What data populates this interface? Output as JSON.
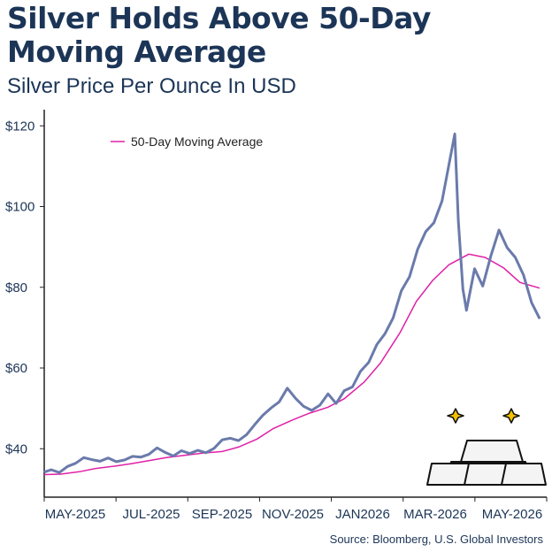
{
  "title": "Silver Holds Above 50-Day Moving Average",
  "subtitle": "Silver Price Per Ounce In USD",
  "source": "Source: Bloomberg, U.S. Global Investors",
  "chart_data": {
    "type": "line",
    "title": "Silver Holds Above 50-Day Moving Average",
    "subtitle": "Silver Price Per Ounce In USD",
    "xlabel": "",
    "ylabel": "",
    "x_tick_labels": [
      "MAY-2025",
      "JUL-2025",
      "SEP-2025",
      "NOV-2025",
      "JAN2026",
      "MAR-2026",
      "MAY-2026"
    ],
    "y_tick_labels": [
      "$40",
      "$60",
      "$80",
      "$100",
      "$120"
    ],
    "y_ticks": [
      40,
      60,
      80,
      100,
      120
    ],
    "xlim": [
      "2025-04-01",
      "2026-06-07"
    ],
    "ylim": [
      28,
      124
    ],
    "grid": false,
    "legend_position": "top-left",
    "colors": {
      "price": "#6a7aab",
      "ma": "#e020a8",
      "text": "#1c3557"
    },
    "series": [
      {
        "key": "price",
        "name": "",
        "points": [
          [
            "2025-04-01",
            34.2
          ],
          [
            "2025-04-07",
            34.8
          ],
          [
            "2025-04-14",
            34.1
          ],
          [
            "2025-04-21",
            35.6
          ],
          [
            "2025-04-28",
            36.4
          ],
          [
            "2025-05-05",
            37.8
          ],
          [
            "2025-05-12",
            37.3
          ],
          [
            "2025-05-19",
            36.9
          ],
          [
            "2025-05-26",
            37.7
          ],
          [
            "2025-06-02",
            36.8
          ],
          [
            "2025-06-09",
            37.2
          ],
          [
            "2025-06-16",
            38.1
          ],
          [
            "2025-06-23",
            37.9
          ],
          [
            "2025-06-30",
            38.6
          ],
          [
            "2025-07-07",
            40.2
          ],
          [
            "2025-07-14",
            39.1
          ],
          [
            "2025-07-21",
            38.2
          ],
          [
            "2025-07-28",
            39.5
          ],
          [
            "2025-08-04",
            38.8
          ],
          [
            "2025-08-11",
            39.6
          ],
          [
            "2025-08-18",
            39.0
          ],
          [
            "2025-08-25",
            40.1
          ],
          [
            "2025-09-01",
            42.2
          ],
          [
            "2025-09-08",
            42.6
          ],
          [
            "2025-09-15",
            42.0
          ],
          [
            "2025-09-22",
            43.5
          ],
          [
            "2025-09-29",
            46.0
          ],
          [
            "2025-10-06",
            48.3
          ],
          [
            "2025-10-13",
            50.1
          ],
          [
            "2025-10-20",
            51.6
          ],
          [
            "2025-10-27",
            55.0
          ],
          [
            "2025-11-03",
            52.5
          ],
          [
            "2025-11-10",
            50.5
          ],
          [
            "2025-11-17",
            49.5
          ],
          [
            "2025-11-24",
            50.8
          ],
          [
            "2025-12-01",
            53.6
          ],
          [
            "2025-12-08",
            51.2
          ],
          [
            "2025-12-15",
            54.4
          ],
          [
            "2025-12-22",
            55.3
          ],
          [
            "2025-12-29",
            59.2
          ],
          [
            "2026-01-05",
            61.4
          ],
          [
            "2026-01-12",
            65.8
          ],
          [
            "2026-01-19",
            68.5
          ],
          [
            "2026-01-26",
            72.4
          ],
          [
            "2026-02-02",
            79.1
          ],
          [
            "2026-02-09",
            82.6
          ],
          [
            "2026-02-16",
            89.4
          ],
          [
            "2026-02-23",
            93.8
          ],
          [
            "2026-03-02",
            96.0
          ],
          [
            "2026-03-09",
            101.4
          ],
          [
            "2026-03-16",
            112.0
          ],
          [
            "2026-03-20",
            118.0
          ],
          [
            "2026-03-23",
            96.5
          ],
          [
            "2026-03-27",
            79.5
          ],
          [
            "2026-03-30",
            74.3
          ],
          [
            "2026-04-06",
            84.6
          ],
          [
            "2026-04-13",
            80.3
          ],
          [
            "2026-04-20",
            87.8
          ],
          [
            "2026-04-27",
            94.2
          ],
          [
            "2026-05-04",
            89.8
          ],
          [
            "2026-05-11",
            87.4
          ],
          [
            "2026-05-18",
            83.1
          ],
          [
            "2026-05-25",
            76.2
          ],
          [
            "2026-06-01",
            72.2
          ]
        ]
      },
      {
        "key": "ma",
        "name": "50-Day Moving Average",
        "points": [
          [
            "2025-04-01",
            33.6
          ],
          [
            "2025-04-15",
            33.7
          ],
          [
            "2025-05-01",
            34.3
          ],
          [
            "2025-05-15",
            35.1
          ],
          [
            "2025-06-01",
            35.7
          ],
          [
            "2025-06-15",
            36.3
          ],
          [
            "2025-07-01",
            37.1
          ],
          [
            "2025-07-15",
            37.8
          ],
          [
            "2025-08-01",
            38.4
          ],
          [
            "2025-08-15",
            38.9
          ],
          [
            "2025-09-01",
            39.3
          ],
          [
            "2025-09-15",
            40.4
          ],
          [
            "2025-10-01",
            42.4
          ],
          [
            "2025-10-15",
            45.0
          ],
          [
            "2025-11-01",
            47.2
          ],
          [
            "2025-11-15",
            48.8
          ],
          [
            "2025-12-01",
            50.3
          ],
          [
            "2025-12-15",
            52.4
          ],
          [
            "2026-01-01",
            56.5
          ],
          [
            "2026-01-15",
            61.2
          ],
          [
            "2026-02-01",
            68.8
          ],
          [
            "2026-02-15",
            76.5
          ],
          [
            "2026-03-01",
            81.7
          ],
          [
            "2026-03-15",
            85.6
          ],
          [
            "2026-04-01",
            88.2
          ],
          [
            "2026-04-15",
            87.4
          ],
          [
            "2026-05-01",
            84.8
          ],
          [
            "2026-05-15",
            81.2
          ],
          [
            "2026-06-01",
            79.8
          ]
        ]
      }
    ]
  }
}
